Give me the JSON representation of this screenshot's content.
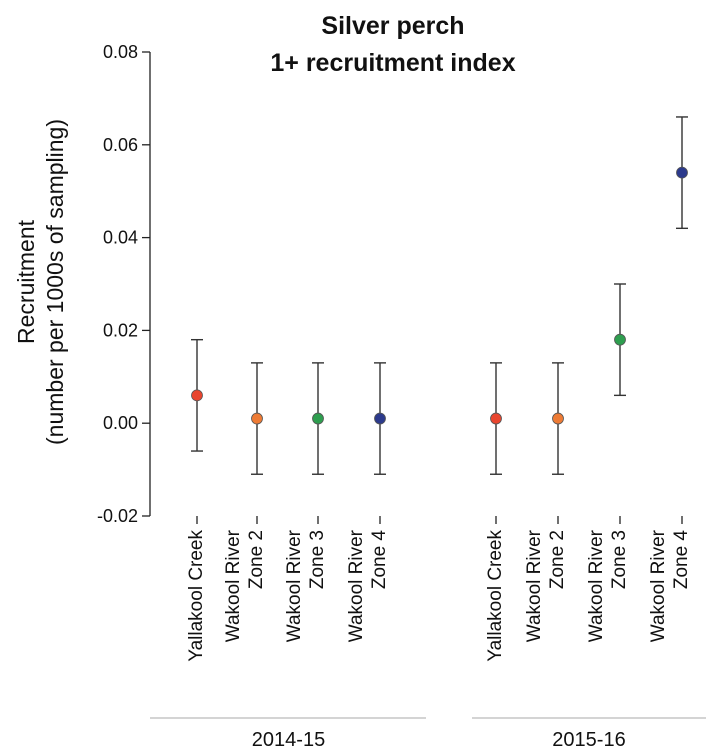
{
  "chart_data": {
    "type": "scatter",
    "title": "Silver perch",
    "subtitle": "1+ recruitment index",
    "ylabel_line1": "Recruitment",
    "ylabel_line2": "(number per 1000s of sampling)",
    "ylim": [
      -0.02,
      0.08
    ],
    "yticks": [
      "-0.02",
      "0.00",
      "0.02",
      "0.04",
      "0.06",
      "0.08"
    ],
    "ytick_values": [
      -0.02,
      0,
      0.02,
      0.04,
      0.06,
      0.08
    ],
    "groups": [
      {
        "label": "2014-15",
        "points": [
          {
            "label": [
              "Yallakool Creek"
            ],
            "value": 0.006,
            "lower": -0.006,
            "upper": 0.018,
            "color": "#e8452e"
          },
          {
            "label": [
              "Wakool River",
              "Zone 2"
            ],
            "value": 0.001,
            "lower": -0.011,
            "upper": 0.013,
            "color": "#ee7b35"
          },
          {
            "label": [
              "Wakool River",
              "Zone 3"
            ],
            "value": 0.001,
            "lower": -0.011,
            "upper": 0.013,
            "color": "#2e9e4f"
          },
          {
            "label": [
              "Wakool River",
              "Zone 4"
            ],
            "value": 0.001,
            "lower": -0.011,
            "upper": 0.013,
            "color": "#2c3a8c"
          }
        ]
      },
      {
        "label": "2015-16",
        "points": [
          {
            "label": [
              "Yallakool Creek"
            ],
            "value": 0.001,
            "lower": -0.011,
            "upper": 0.013,
            "color": "#e8452e"
          },
          {
            "label": [
              "Wakool River",
              "Zone 2"
            ],
            "value": 0.001,
            "lower": -0.011,
            "upper": 0.013,
            "color": "#ee7b35"
          },
          {
            "label": [
              "Wakool River",
              "Zone 3"
            ],
            "value": 0.018,
            "lower": 0.006,
            "upper": 0.03,
            "color": "#2e9e4f"
          },
          {
            "label": [
              "Wakool River",
              "Zone 4"
            ],
            "value": 0.054,
            "lower": 0.042,
            "upper": 0.066,
            "color": "#2c3a8c"
          }
        ]
      }
    ],
    "grid": false,
    "legend": "none"
  }
}
